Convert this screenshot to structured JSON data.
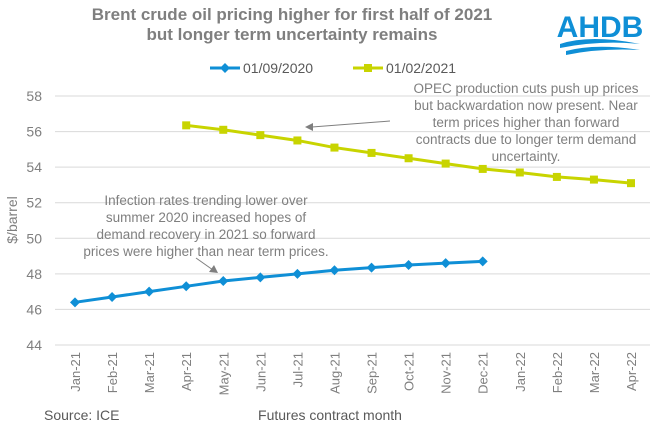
{
  "logo": "AHDB",
  "source": "Source: ICE",
  "chart_data": {
    "type": "line",
    "title_lines": [
      "Brent crude oil pricing higher for first half of 2021",
      "but longer term uncertainty remains"
    ],
    "xlabel": "Futures contract month",
    "ylabel": "$/barrel",
    "ylim": [
      44,
      58
    ],
    "yticks": [
      44,
      46,
      48,
      50,
      52,
      54,
      56,
      58
    ],
    "grid": true,
    "legend_position": "top",
    "categories": [
      "Jan-21",
      "Feb-21",
      "Mar-21",
      "Apr-21",
      "May-21",
      "Jun-21",
      "Jul-21",
      "Aug-21",
      "Sep-21",
      "Oct-21",
      "Nov-21",
      "Dec-21",
      "Jan-22",
      "Feb-22",
      "Mar-22",
      "Apr-22"
    ],
    "series": [
      {
        "name": "01/09/2020",
        "color": "#0f8fd6",
        "marker": "diamond",
        "values": [
          46.4,
          46.7,
          47.0,
          47.3,
          47.6,
          47.8,
          48.0,
          48.2,
          48.35,
          48.5,
          48.6,
          48.7,
          null,
          null,
          null,
          null
        ]
      },
      {
        "name": "01/02/2021",
        "color": "#c8d400",
        "marker": "square",
        "values": [
          null,
          null,
          null,
          56.35,
          56.1,
          55.8,
          55.5,
          55.1,
          54.8,
          54.5,
          54.2,
          53.9,
          53.7,
          53.45,
          53.3,
          53.1
        ]
      }
    ],
    "annotations": [
      {
        "lines": [
          "OPEC production cuts push up prices",
          "but backwardation now present. Near",
          "term prices higher than forward",
          "contracts due to longer term demand",
          "uncertainty."
        ]
      },
      {
        "lines": [
          "Infection rates trending lower over",
          "summer 2020 increased hopes of",
          "demand recovery in 2021 so forward",
          "prices were higher than near term prices."
        ]
      }
    ]
  }
}
